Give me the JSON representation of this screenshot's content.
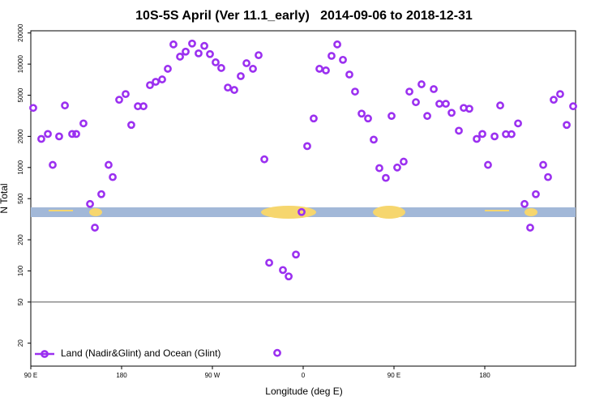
{
  "chart_data": {
    "type": "scatter",
    "title": "10S-5S April (Ver 11.1_early)   2014-09-06 to 2018-12-31",
    "x_label": "Longitude (deg E)",
    "y_label": "N Total",
    "log_y": true,
    "xlim": [
      90,
      630
    ],
    "ylim": [
      12,
      21000
    ],
    "xticks": [
      {
        "value": 90,
        "label": "90 E"
      },
      {
        "value": 180,
        "label": "180"
      },
      {
        "value": 270,
        "label": "90 W"
      },
      {
        "value": 360,
        "label": "0"
      },
      {
        "value": 450,
        "label": "90 E"
      },
      {
        "value": 540,
        "label": "180"
      }
    ],
    "yticks": [
      20,
      50,
      100,
      200,
      500,
      1000,
      2000,
      5000,
      10000,
      20000
    ],
    "reference_line": 50,
    "legend_position": "bottom-left",
    "series": [
      {
        "name": "Land (Nadir&Glint) and Ocean (Glint)",
        "color": "#9b30f0",
        "x": [
          92.4,
          100.4,
          106.9,
          111.7,
          118.1,
          123.8,
          131,
          135,
          142.2,
          148.7,
          153.5,
          159.9,
          167.1,
          171.2,
          177.6,
          184,
          189.6,
          196.1,
          201.7,
          208.1,
          213.8,
          220.2,
          225.8,
          231.4,
          237.9,
          243.5,
          249.9,
          256.3,
          262,
          267.6,
          273.2,
          278.8,
          285.3,
          291.7,
          298.1,
          303.8,
          310.2,
          315.8,
          321.5,
          326.3,
          334.3,
          339.9,
          345.6,
          352.8,
          358.4,
          364,
          370.4,
          376.1,
          382.5,
          388.1,
          393.8,
          399.4,
          405.8,
          411.4,
          417.9,
          424.3,
          429.9,
          435.5,
          441.9,
          447.6,
          453.2,
          459.6,
          465.3,
          471.7,
          477.3,
          483,
          489.4,
          495,
          501.4,
          507.1,
          514.3,
          519.1,
          524.7,
          532,
          537.6,
          543.2,
          549.7,
          555.3,
          560.9,
          566.5,
          573,
          579.4,
          585,
          590.6,
          597.9,
          602.7,
          608.3,
          614.7,
          621.2,
          627.6
        ],
        "values": [
          3770,
          1890,
          2110,
          1060,
          2000,
          3980,
          2110,
          2110,
          2670,
          444,
          262,
          552,
          1060,
          808,
          4520,
          5130,
          2580,
          3910,
          3910,
          6260,
          6740,
          7110,
          9010,
          15500,
          11800,
          13200,
          15800,
          12700,
          15000,
          12500,
          10400,
          9170,
          5930,
          5620,
          7650,
          10200,
          9010,
          12200,
          1200,
          120,
          16.1,
          102,
          88.5,
          144,
          371,
          1610,
          2980,
          9010,
          8690,
          12000,
          15500,
          11000,
          7930,
          5420,
          3320,
          2980,
          1860,
          986,
          793,
          3150,
          1000,
          1140,
          5420,
          4280,
          6380,
          3150,
          5730,
          4130,
          4130,
          3380,
          2270,
          3770,
          3700,
          1890,
          2110,
          1060,
          2000,
          3980,
          2100,
          2100,
          2670,
          444,
          262,
          552,
          1060,
          808,
          4520,
          5130,
          2580,
          3910
        ]
      }
    ]
  }
}
